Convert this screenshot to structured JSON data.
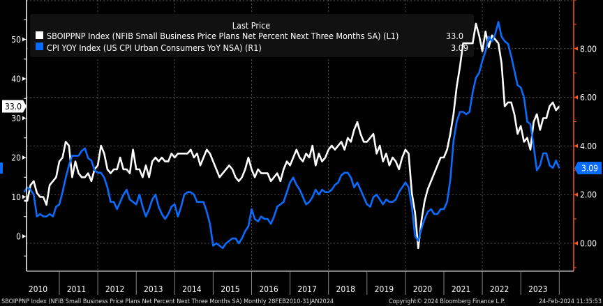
{
  "chart_data": {
    "type": "line",
    "title": "",
    "legend": {
      "header": "Last Price",
      "placement": "top-left",
      "entries": [
        {
          "label": "SBOIPPNP Index (NFIB Small Business Price Plans Net Percent Next Three Months SA)  (L1)",
          "last": "33.0",
          "color": "#ffffff"
        },
        {
          "label": "CPI YOY Index (US CPI Urban Consumers YoY NSA)  (R1)",
          "last": "3.09",
          "color": "#0a6cff"
        }
      ]
    },
    "x_start": "2010-02",
    "x_end": "2024-01",
    "frequency": "Monthly",
    "x_tick_labels": [
      "2010",
      "2011",
      "2012",
      "2013",
      "2014",
      "2015",
      "2016",
      "2017",
      "2018",
      "2019",
      "2020",
      "2021",
      "2022",
      "2023"
    ],
    "left_axis": {
      "ticks": [
        0,
        10,
        20,
        30,
        40,
        50
      ],
      "labels": [
        "0",
        "10",
        "20",
        "30",
        "40",
        "50"
      ],
      "range": [
        -8,
        60
      ],
      "color": "#ffffff"
    },
    "right_axis": {
      "ticks": [
        0,
        2,
        4,
        6,
        8
      ],
      "labels": [
        "0.00",
        "2.00",
        "4.00",
        "6.00",
        "8.00"
      ],
      "range": [
        -1.2,
        10
      ],
      "color": "#ff5a1f"
    },
    "grid": true,
    "series": [
      {
        "name": "SBOIPPNP Index",
        "axis": "left",
        "color": "#ffffff",
        "values": [
          9,
          9,
          13,
          14,
          11,
          10,
          10,
          8,
          13,
          14,
          15,
          19,
          20,
          24,
          23,
          15,
          19,
          16,
          15,
          15,
          16,
          14,
          17,
          18,
          23,
          21,
          17,
          16,
          17,
          17,
          20,
          17,
          17,
          16,
          22,
          17,
          17,
          15,
          18,
          15,
          19,
          20,
          19,
          20,
          19,
          19,
          21,
          20,
          21,
          21,
          21,
          21,
          22,
          20,
          21,
          18,
          20,
          22,
          21,
          19,
          17,
          15,
          16,
          17,
          18,
          17,
          15,
          14,
          15,
          17,
          20,
          17,
          15,
          17,
          16,
          16,
          16,
          14,
          15,
          16,
          14,
          17,
          19,
          18,
          20,
          22,
          20,
          19,
          21,
          20,
          23,
          18,
          21,
          19,
          20,
          22,
          23,
          22,
          23,
          24,
          22,
          25,
          24,
          27,
          29,
          26,
          24,
          24,
          25,
          26,
          21,
          23,
          19,
          21,
          18,
          20,
          19,
          17,
          20,
          22,
          21,
          11,
          6,
          -3,
          4,
          9,
          12,
          14,
          16,
          18,
          20,
          20,
          22,
          26,
          31,
          38,
          43,
          49,
          49,
          49,
          49,
          54,
          51,
          47,
          52,
          48,
          51,
          50,
          49,
          44,
          33,
          34,
          34,
          31,
          26,
          28,
          24,
          25,
          22,
          29,
          31,
          27,
          30,
          30,
          33,
          34,
          32,
          33
        ]
      },
      {
        "name": "CPI YOY Index",
        "axis": "right",
        "color": "#0a6cff",
        "values": [
          2.1,
          2.3,
          2.2,
          2.0,
          1.1,
          1.2,
          1.1,
          1.1,
          1.2,
          1.1,
          1.5,
          1.6,
          2.1,
          2.7,
          3.2,
          3.6,
          3.6,
          3.6,
          3.8,
          3.9,
          3.5,
          3.4,
          3.0,
          2.9,
          2.9,
          2.7,
          2.3,
          1.7,
          1.7,
          1.4,
          1.7,
          2.0,
          2.2,
          1.8,
          1.7,
          1.6,
          2.0,
          1.5,
          1.1,
          1.4,
          1.8,
          2.0,
          1.5,
          1.2,
          1.0,
          1.2,
          1.5,
          1.6,
          1.1,
          1.5,
          2.0,
          2.1,
          2.1,
          2.0,
          1.7,
          1.7,
          1.7,
          1.3,
          0.8,
          -0.1,
          0.0,
          -0.1,
          -0.2,
          0.0,
          0.1,
          0.2,
          0.2,
          0.0,
          0.2,
          0.5,
          0.7,
          1.4,
          1.0,
          0.9,
          1.1,
          1.0,
          1.0,
          0.8,
          1.1,
          1.5,
          1.6,
          1.7,
          2.1,
          2.5,
          2.7,
          2.4,
          2.2,
          1.9,
          1.6,
          1.7,
          1.9,
          2.2,
          2.0,
          2.2,
          2.1,
          2.1,
          2.2,
          2.4,
          2.5,
          2.8,
          2.9,
          2.9,
          2.7,
          2.3,
          2.5,
          2.2,
          1.9,
          1.6,
          1.5,
          1.9,
          2.0,
          1.8,
          1.6,
          1.8,
          1.7,
          1.7,
          1.8,
          2.1,
          2.3,
          2.5,
          2.3,
          1.5,
          0.3,
          0.1,
          0.6,
          1.0,
          1.3,
          1.4,
          1.2,
          1.2,
          1.4,
          1.4,
          1.7,
          2.6,
          4.2,
          5.0,
          5.4,
          5.4,
          5.3,
          5.4,
          6.2,
          6.8,
          7.0,
          7.5,
          7.9,
          8.5,
          8.3,
          8.6,
          9.1,
          8.5,
          8.3,
          8.2,
          7.7,
          7.1,
          6.5,
          6.4,
          6.0,
          5.0,
          4.9,
          4.0,
          3.0,
          3.2,
          3.7,
          3.7,
          3.2,
          3.1,
          3.4,
          3.09
        ]
      }
    ]
  },
  "footer": {
    "description": "SBOIPPNP Index (NFIB Small Business Price Plans Net Percent Next Three Months SA)  Monthly 28FEB2010-31JAN2024",
    "copyright": "Copyright© 2024 Bloomberg Finance L.P.",
    "timestamp": "24-Feb-2024 11:35:53"
  }
}
